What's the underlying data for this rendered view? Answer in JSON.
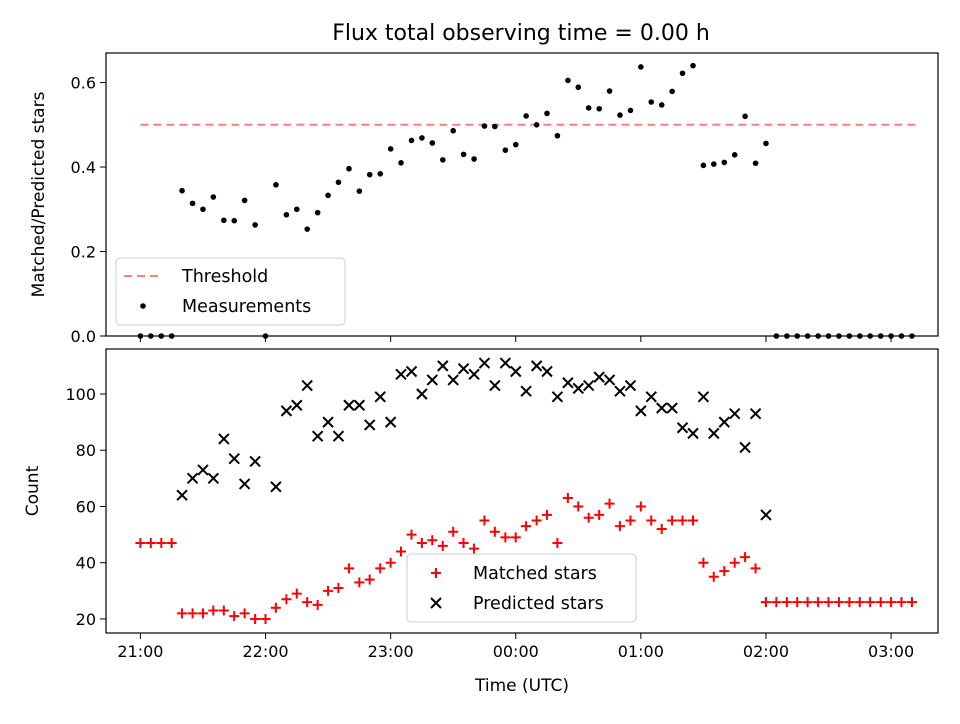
{
  "chart_data": [
    {
      "type": "scatter",
      "title": "Flux total observing time = 0.00 h",
      "xlabel": "",
      "ylabel": "Matched/Predicted stars",
      "xlim": [
        -0.275,
        6.375
      ],
      "ylim": [
        0,
        0.67
      ],
      "xticks": [
        0,
        1,
        2,
        3,
        4,
        5,
        6
      ],
      "xtick_labels": [
        "21:00",
        "22:00",
        "23:00",
        "00:00",
        "01:00",
        "02:00",
        "03:00"
      ],
      "yticks": [
        0,
        0.2,
        0.4,
        0.6
      ],
      "ytick_labels": [
        "0.0",
        "0.2",
        "0.4",
        "0.6"
      ],
      "legend_position": "lower-left",
      "series": [
        {
          "name": "Threshold",
          "style": "dashed-line",
          "color": "#ff7f7f",
          "x": [
            0,
            6.2
          ],
          "y": [
            0.5,
            0.5
          ]
        },
        {
          "name": "Measurements",
          "style": "dot",
          "color": "#000000",
          "x": [
            0.0,
            0.083,
            0.167,
            0.25,
            0.333,
            0.417,
            0.5,
            0.583,
            0.667,
            0.75,
            0.833,
            0.917,
            1.0,
            1.083,
            1.167,
            1.25,
            1.333,
            1.417,
            1.5,
            1.583,
            1.667,
            1.75,
            1.833,
            1.917,
            2.0,
            2.083,
            2.167,
            2.25,
            2.333,
            2.417,
            2.5,
            2.583,
            2.667,
            2.75,
            2.833,
            2.917,
            3.0,
            3.083,
            3.167,
            3.25,
            3.333,
            3.417,
            3.5,
            3.583,
            3.667,
            3.75,
            3.833,
            3.917,
            4.0,
            4.083,
            4.167,
            4.25,
            4.333,
            4.417,
            4.5,
            4.583,
            4.667,
            4.75,
            4.833,
            4.917,
            5.0,
            5.083,
            5.167,
            5.25,
            5.333,
            5.417,
            5.5,
            5.583,
            5.667,
            5.75,
            5.833,
            5.917,
            6.0,
            6.083,
            6.167
          ],
          "y": [
            0.0,
            0.0,
            0.0,
            0.0,
            0.344,
            0.314,
            0.3,
            0.329,
            0.274,
            0.273,
            0.321,
            0.263,
            0.0,
            0.358,
            0.287,
            0.3,
            0.253,
            0.292,
            0.333,
            0.364,
            0.396,
            0.343,
            0.382,
            0.384,
            0.443,
            0.41,
            0.463,
            0.469,
            0.457,
            0.417,
            0.486,
            0.43,
            0.419,
            0.497,
            0.496,
            0.44,
            0.453,
            0.521,
            0.5,
            0.527,
            0.474,
            0.605,
            0.589,
            0.54,
            0.538,
            0.58,
            0.523,
            0.534,
            0.637,
            0.554,
            0.547,
            0.579,
            0.622,
            0.64,
            0.404,
            0.407,
            0.411,
            0.429,
            0.52,
            0.409,
            0.456,
            0.0,
            0.0,
            0.0,
            0.0,
            0.0,
            0.0,
            0.0,
            0.0,
            0.0,
            0.0,
            0.0,
            0.0,
            0.0,
            0.0
          ]
        }
      ]
    },
    {
      "type": "scatter",
      "title": "",
      "xlabel": "Time (UTC)",
      "ylabel": "Count",
      "xlim": [
        -0.275,
        6.375
      ],
      "ylim": [
        15,
        116
      ],
      "xticks": [
        0,
        1,
        2,
        3,
        4,
        5,
        6
      ],
      "xtick_labels": [
        "21:00",
        "22:00",
        "23:00",
        "00:00",
        "01:00",
        "02:00",
        "03:00"
      ],
      "yticks": [
        20,
        40,
        60,
        80,
        100
      ],
      "ytick_labels": [
        "20",
        "40",
        "60",
        "80",
        "100"
      ],
      "legend_position": "lower-center",
      "series": [
        {
          "name": "Matched stars",
          "marker": "plus",
          "color": "#ff0000",
          "x": [
            0.0,
            0.083,
            0.167,
            0.25,
            0.333,
            0.417,
            0.5,
            0.583,
            0.667,
            0.75,
            0.833,
            0.917,
            1.0,
            1.083,
            1.167,
            1.25,
            1.333,
            1.417,
            1.5,
            1.583,
            1.667,
            1.75,
            1.833,
            1.917,
            2.0,
            2.083,
            2.167,
            2.25,
            2.333,
            2.417,
            2.5,
            2.583,
            2.667,
            2.75,
            2.833,
            2.917,
            3.0,
            3.083,
            3.167,
            3.25,
            3.333,
            3.417,
            3.5,
            3.583,
            3.667,
            3.75,
            3.833,
            3.917,
            4.0,
            4.083,
            4.167,
            4.25,
            4.333,
            4.417,
            4.5,
            4.583,
            4.667,
            4.75,
            4.833,
            4.917,
            5.0,
            5.083,
            5.167,
            5.25,
            5.333,
            5.417,
            5.5,
            5.583,
            5.667,
            5.75,
            5.833,
            5.917,
            6.0,
            6.083,
            6.167
          ],
          "y": [
            47,
            47,
            47,
            47,
            22,
            22,
            22,
            23,
            23,
            21,
            22,
            20,
            20,
            24,
            27,
            29,
            26,
            25,
            30,
            31,
            38,
            33,
            34,
            38,
            40,
            44,
            50,
            47,
            48,
            46,
            51,
            47,
            45,
            55,
            51,
            49,
            49,
            53,
            55,
            57,
            47,
            63,
            60,
            56,
            57,
            61,
            53,
            55,
            60,
            55,
            52,
            55,
            55,
            55,
            40,
            35,
            37,
            40,
            42,
            38,
            26,
            26,
            26,
            26,
            26,
            26,
            26,
            26,
            26,
            26,
            26,
            26,
            26,
            26,
            26
          ]
        },
        {
          "name": "Predicted stars",
          "marker": "x",
          "color": "#000000",
          "x": [
            0.333,
            0.417,
            0.5,
            0.583,
            0.667,
            0.75,
            0.833,
            0.917,
            1.083,
            1.167,
            1.25,
            1.333,
            1.417,
            1.5,
            1.583,
            1.667,
            1.75,
            1.833,
            1.917,
            2.0,
            2.083,
            2.167,
            2.25,
            2.333,
            2.417,
            2.5,
            2.583,
            2.667,
            2.75,
            2.833,
            2.917,
            3.0,
            3.083,
            3.167,
            3.25,
            3.333,
            3.417,
            3.5,
            3.583,
            3.667,
            3.75,
            3.833,
            3.917,
            4.0,
            4.083,
            4.167,
            4.25,
            4.333,
            4.417,
            4.5,
            4.583,
            4.667,
            4.75,
            4.833,
            4.917,
            5.0
          ],
          "y": [
            64,
            70,
            73,
            70,
            84,
            77,
            68,
            76,
            67,
            94,
            96,
            103,
            85,
            90,
            85,
            96,
            96,
            89,
            99,
            90,
            107,
            108,
            100,
            105,
            110,
            105,
            109,
            107,
            111,
            103,
            111,
            108,
            101,
            110,
            108,
            99,
            104,
            102,
            103,
            106,
            105,
            101,
            103,
            94,
            99,
            95,
            95,
            88,
            86,
            99,
            86,
            90,
            93,
            81,
            93,
            57
          ]
        }
      ]
    }
  ]
}
